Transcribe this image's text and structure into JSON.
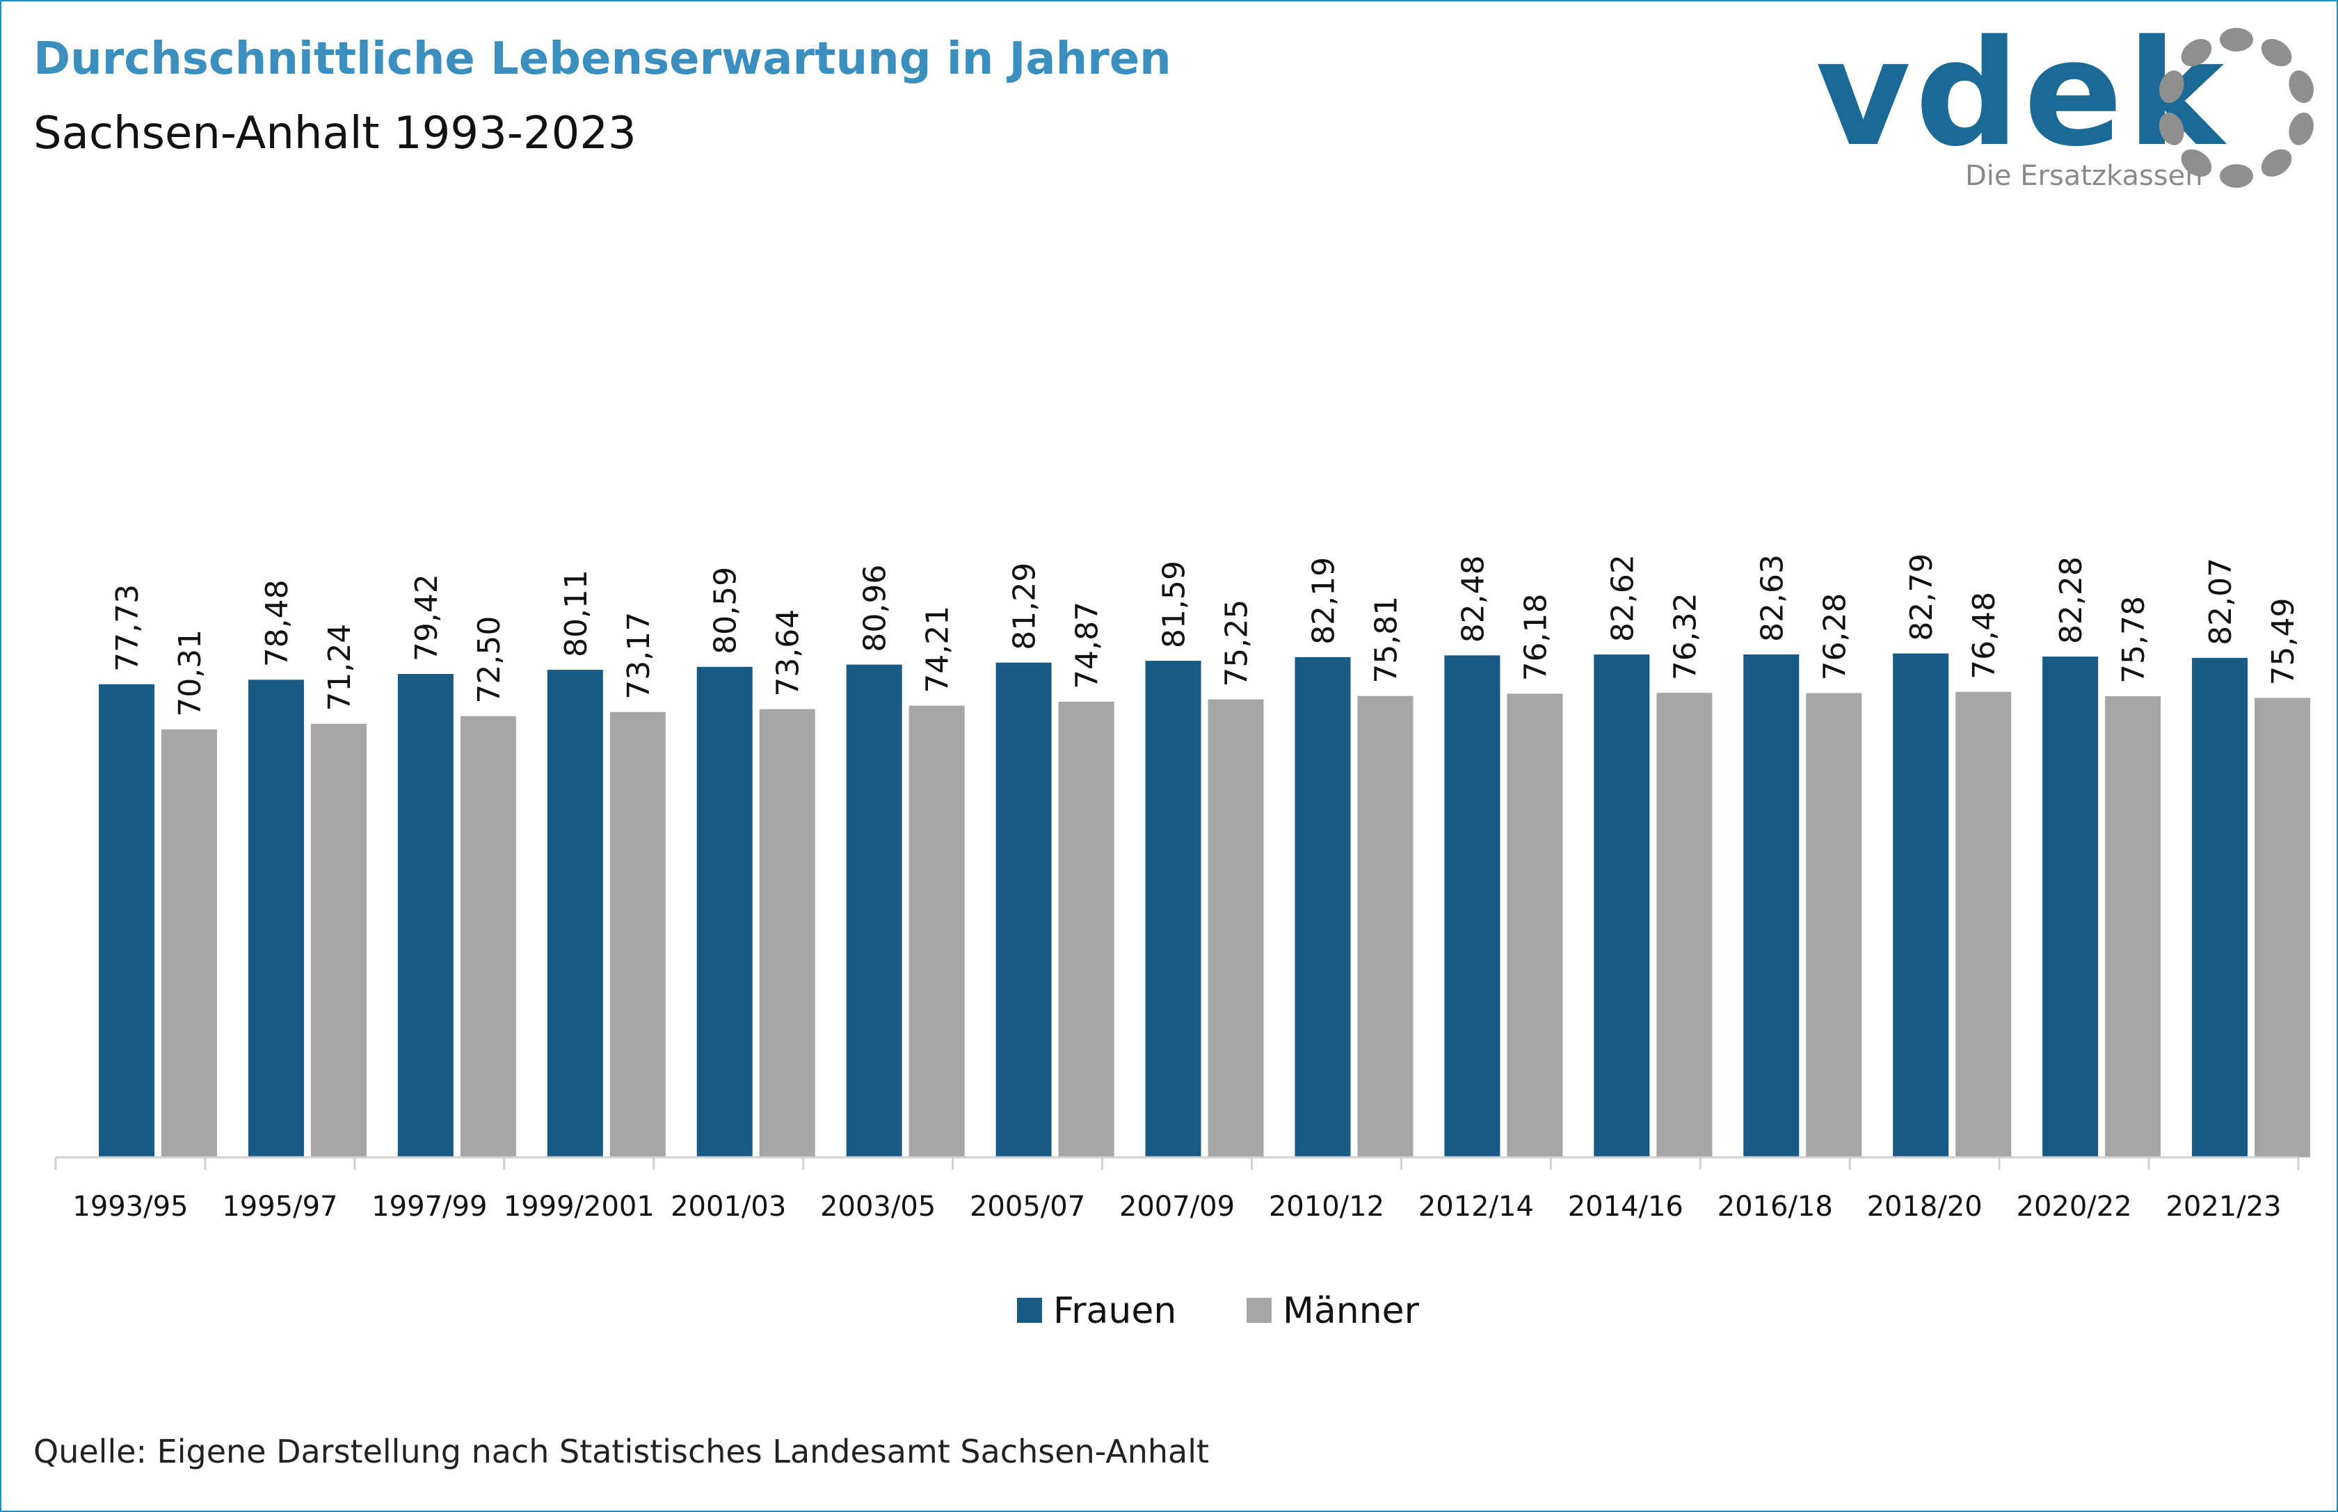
{
  "header": {
    "title": "Durchschnittliche Lebenserwartung in Jahren",
    "subtitle": "Sachsen-Anhalt 1993-2023"
  },
  "logo": {
    "wordmark": "vdek",
    "tagline": "Die Ersatzkassen",
    "icon": "dotted-ring-icon"
  },
  "footer": {
    "source": "Quelle: Eigene Darstellung nach Statistisches Landesamt Sachsen-Anhalt"
  },
  "colors": {
    "frauen": "#175a84",
    "maenner": "#a6a6a6",
    "title": "#3a8fbf",
    "frame": "#1a8fc4"
  },
  "chart_data": {
    "type": "bar",
    "categories": [
      "1993/95",
      "1995/97",
      "1997/99",
      "1999/2001",
      "2001/03",
      "2003/05",
      "2005/07",
      "2007/09",
      "2010/12",
      "2012/14",
      "2014/16",
      "2016/18",
      "2018/20",
      "2020/22",
      "2021/23"
    ],
    "series": [
      {
        "name": "Frauen",
        "values": [
          77.73,
          78.48,
          79.42,
          80.11,
          80.59,
          80.96,
          81.29,
          81.59,
          82.19,
          82.48,
          82.62,
          82.63,
          82.79,
          82.28,
          82.07
        ],
        "labels": [
          "77,73",
          "78,48",
          "79,42",
          "80,11",
          "80,59",
          "80,96",
          "81,29",
          "81,59",
          "82,19",
          "82,48",
          "82,62",
          "82,63",
          "82,79",
          "82,28",
          "82,07"
        ]
      },
      {
        "name": "Männer",
        "values": [
          70.31,
          71.24,
          72.5,
          73.17,
          73.64,
          74.21,
          74.87,
          75.25,
          75.81,
          76.18,
          76.32,
          76.28,
          76.48,
          75.78,
          75.49
        ],
        "labels": [
          "70,31",
          "71,24",
          "72,50",
          "73,17",
          "73,64",
          "74,21",
          "74,87",
          "75,25",
          "75,81",
          "76,18",
          "76,32",
          "76,28",
          "76,48",
          "75,78",
          "75,49"
        ]
      }
    ],
    "ylim": [
      0,
      100
    ],
    "grid": false,
    "legend_position": "bottom-center",
    "data_labels": "rotated-vertical"
  }
}
